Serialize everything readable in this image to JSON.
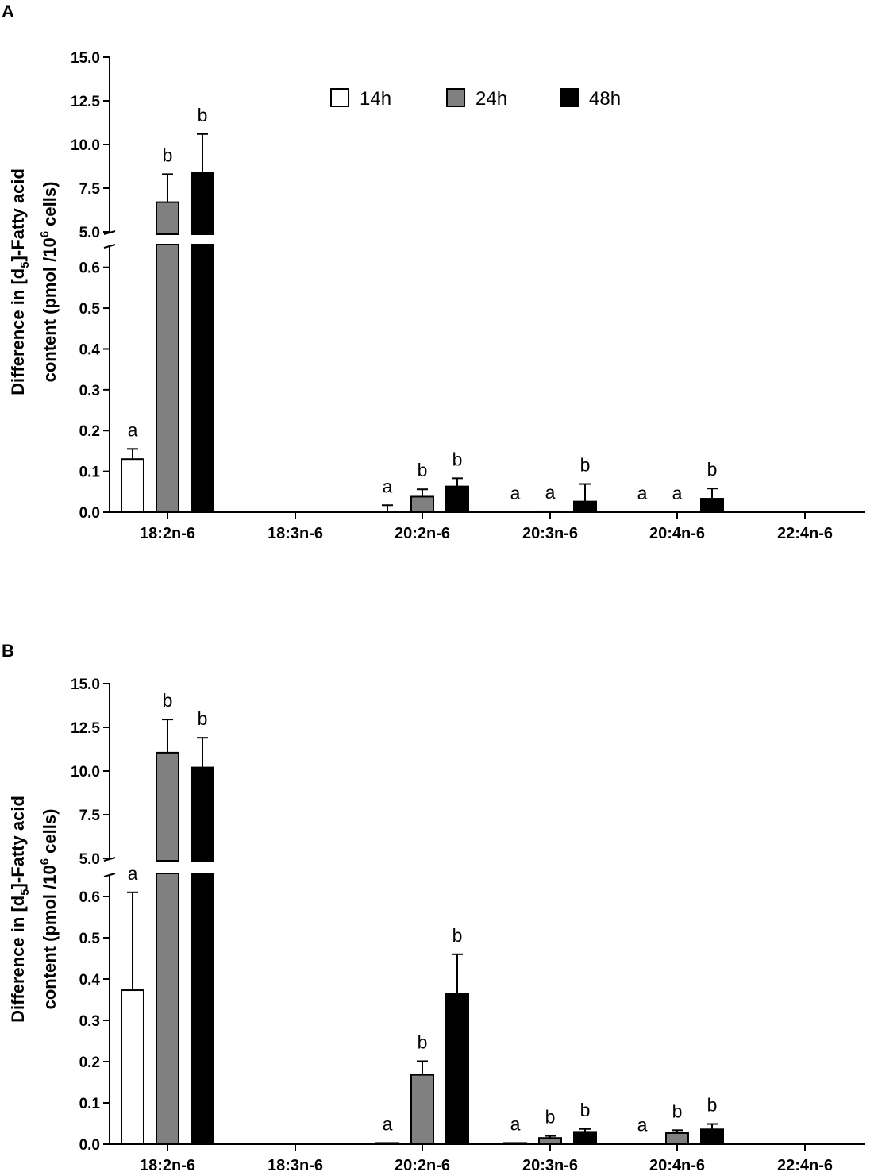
{
  "legend": [
    {
      "label": "14h",
      "color": "#ffffff"
    },
    {
      "label": "24h",
      "color": "#808080"
    },
    {
      "label": "48h",
      "color": "#000000"
    }
  ],
  "chart_data": [
    {
      "panel": "A",
      "type": "bar",
      "ylabel_prefix": "Difference in [d",
      "ylabel_sub": "5",
      "ylabel_suffix": "]-Fatty acid",
      "ylabel2_prefix": "content (pmol /10",
      "ylabel2_sup": "6",
      "ylabel2_suffix": " cells)",
      "categories": [
        "18:2n-6",
        "18:3n-6",
        "20:2n-6",
        "20:3n-6",
        "20:4n-6",
        "22:4n-6"
      ],
      "y_axis_broken": true,
      "lower_ylim": [
        0,
        0.65
      ],
      "lower_ticks": [
        "0.0",
        "0.1",
        "0.2",
        "0.3",
        "0.4",
        "0.5",
        "0.6"
      ],
      "upper_ylim": [
        5.0,
        15.0
      ],
      "upper_ticks": [
        "5.0",
        "7.5",
        "10.0",
        "12.5",
        "15.0"
      ],
      "series": [
        {
          "name": "14h",
          "values": [
            0.13,
            0,
            0,
            0,
            0,
            0
          ],
          "errors": [
            0.025,
            0,
            0.017,
            0,
            0,
            0
          ],
          "labels": [
            "a",
            "",
            "a",
            "a",
            "a",
            ""
          ]
        },
        {
          "name": "24h",
          "values": [
            6.7,
            0,
            0.038,
            0.002,
            0,
            0
          ],
          "errors": [
            1.6,
            0,
            0.018,
            0,
            0,
            0
          ],
          "labels": [
            "b",
            "",
            "b",
            "a",
            "a",
            ""
          ]
        },
        {
          "name": "48h",
          "values": [
            8.4,
            0,
            0.063,
            0.026,
            0.033,
            0
          ],
          "errors": [
            2.2,
            0,
            0.02,
            0.043,
            0.025,
            0
          ],
          "labels": [
            "b",
            "",
            "b",
            "b",
            "b",
            ""
          ]
        }
      ]
    },
    {
      "panel": "B",
      "type": "bar",
      "ylabel_prefix": "Difference in [d",
      "ylabel_sub": "5",
      "ylabel_suffix": "]-Fatty acid",
      "ylabel2_prefix": "content (pmol /10",
      "ylabel2_sup": "6",
      "ylabel2_suffix": " cells)",
      "categories": [
        "18:2n-6",
        "18:3n-6",
        "20:2n-6",
        "20:3n-6",
        "20:4n-6",
        "22:4n-6"
      ],
      "y_axis_broken": true,
      "lower_ylim": [
        0,
        0.65
      ],
      "lower_ticks": [
        "0.0",
        "0.1",
        "0.2",
        "0.3",
        "0.4",
        "0.5",
        "0.6"
      ],
      "upper_ylim": [
        5.0,
        15.0
      ],
      "upper_ticks": [
        "5.0",
        "7.5",
        "10.0",
        "12.5",
        "15.0"
      ],
      "series": [
        {
          "name": "14h",
          "values": [
            0.373,
            0,
            0.003,
            0.003,
            0.001,
            0
          ],
          "errors": [
            0.237,
            0,
            0,
            0,
            0,
            0
          ],
          "labels": [
            "a",
            "",
            "a",
            "a",
            "a",
            ""
          ]
        },
        {
          "name": "24h",
          "values": [
            11.05,
            0,
            0.168,
            0.015,
            0.027,
            0
          ],
          "errors": [
            1.9,
            0,
            0.033,
            0.005,
            0.007,
            0
          ],
          "labels": [
            "b",
            "",
            "b",
            "b",
            "b",
            ""
          ]
        },
        {
          "name": "48h",
          "values": [
            10.2,
            0,
            0.365,
            0.03,
            0.036,
            0
          ],
          "errors": [
            1.7,
            0,
            0.095,
            0.007,
            0.013,
            0
          ],
          "labels": [
            "b",
            "",
            "b",
            "b",
            "b",
            ""
          ]
        }
      ]
    }
  ]
}
